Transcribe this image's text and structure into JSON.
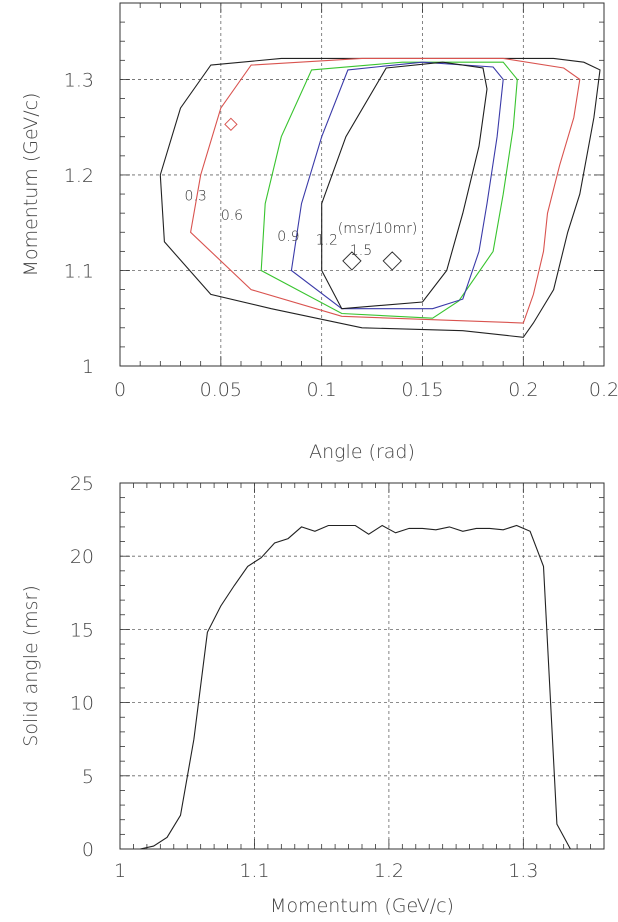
{
  "chart_data": [
    {
      "type": "contour",
      "xlabel": "Angle (rad)",
      "ylabel": "Momentum (GeV/c)",
      "xlim": [
        0,
        0.24
      ],
      "ylim": [
        1.0,
        1.38
      ],
      "xticks": [
        {
          "value": 0,
          "label": "0"
        },
        {
          "value": 0.05,
          "label": "0.05"
        },
        {
          "value": 0.1,
          "label": "0.1"
        },
        {
          "value": 0.15,
          "label": "0.15"
        },
        {
          "value": 0.2,
          "label": "0.2"
        },
        {
          "value": 0.24,
          "label": "0.2"
        }
      ],
      "yticks": [
        {
          "value": 1.0,
          "label": "1"
        },
        {
          "value": 1.1,
          "label": "1.1"
        },
        {
          "value": 1.2,
          "label": "1.2"
        },
        {
          "value": 1.3,
          "label": "1.3"
        }
      ],
      "grid": true,
      "contour_labels": [
        "0.3",
        "0.6",
        "0.9",
        "1.2",
        "1.5"
      ],
      "unit_label": "(msr/10mr)",
      "contours": [
        {
          "level": "0.3",
          "color": "#222222",
          "points": [
            [
              0.045,
              1.315
            ],
            [
              0.08,
              1.322
            ],
            [
              0.16,
              1.322
            ],
            [
              0.215,
              1.322
            ],
            [
              0.23,
              1.318
            ],
            [
              0.238,
              1.31
            ],
            [
              0.235,
              1.26
            ],
            [
              0.228,
              1.18
            ],
            [
              0.222,
              1.14
            ],
            [
              0.215,
              1.08
            ],
            [
              0.205,
              1.045
            ],
            [
              0.2,
              1.03
            ],
            [
              0.17,
              1.037
            ],
            [
              0.12,
              1.04
            ],
            [
              0.075,
              1.06
            ],
            [
              0.045,
              1.075
            ],
            [
              0.022,
              1.13
            ],
            [
              0.02,
              1.2
            ],
            [
              0.03,
              1.27
            ],
            [
              0.045,
              1.315
            ]
          ]
        },
        {
          "level": "0.6",
          "color": "#d9534f",
          "points": [
            [
              0.065,
              1.315
            ],
            [
              0.12,
              1.322
            ],
            [
              0.19,
              1.322
            ],
            [
              0.22,
              1.312
            ],
            [
              0.228,
              1.3
            ],
            [
              0.225,
              1.26
            ],
            [
              0.218,
              1.21
            ],
            [
              0.212,
              1.16
            ],
            [
              0.21,
              1.12
            ],
            [
              0.205,
              1.075
            ],
            [
              0.2,
              1.045
            ],
            [
              0.16,
              1.048
            ],
            [
              0.11,
              1.052
            ],
            [
              0.065,
              1.08
            ],
            [
              0.035,
              1.14
            ],
            [
              0.04,
              1.2
            ],
            [
              0.05,
              1.27
            ],
            [
              0.065,
              1.315
            ]
          ]
        },
        {
          "level": "0.9",
          "color": "#39c42f",
          "points": [
            [
              0.095,
              1.31
            ],
            [
              0.14,
              1.318
            ],
            [
              0.19,
              1.318
            ],
            [
              0.197,
              1.3
            ],
            [
              0.195,
              1.25
            ],
            [
              0.19,
              1.18
            ],
            [
              0.185,
              1.12
            ],
            [
              0.168,
              1.068
            ],
            [
              0.155,
              1.05
            ],
            [
              0.11,
              1.055
            ],
            [
              0.07,
              1.1
            ],
            [
              0.072,
              1.17
            ],
            [
              0.08,
              1.24
            ],
            [
              0.095,
              1.31
            ]
          ]
        },
        {
          "level": "1.2",
          "color": "#3a3aa8",
          "points": [
            [
              0.113,
              1.31
            ],
            [
              0.15,
              1.318
            ],
            [
              0.185,
              1.313
            ],
            [
              0.19,
              1.3
            ],
            [
              0.187,
              1.24
            ],
            [
              0.182,
              1.17
            ],
            [
              0.178,
              1.12
            ],
            [
              0.17,
              1.07
            ],
            [
              0.155,
              1.06
            ],
            [
              0.11,
              1.06
            ],
            [
              0.085,
              1.1
            ],
            [
              0.09,
              1.17
            ],
            [
              0.1,
              1.24
            ],
            [
              0.113,
              1.31
            ]
          ]
        },
        {
          "level": "1.5",
          "color": "#1f1f1f",
          "points": [
            [
              0.132,
              1.312
            ],
            [
              0.16,
              1.318
            ],
            [
              0.18,
              1.312
            ],
            [
              0.182,
              1.29
            ],
            [
              0.178,
              1.23
            ],
            [
              0.17,
              1.16
            ],
            [
              0.162,
              1.1
            ],
            [
              0.15,
              1.067
            ],
            [
              0.11,
              1.06
            ],
            [
              0.1,
              1.1
            ],
            [
              0.1,
              1.17
            ],
            [
              0.112,
              1.24
            ],
            [
              0.132,
              1.312
            ]
          ]
        }
      ],
      "markers": [
        {
          "x": 0.115,
          "y": 1.11,
          "shape": "diamond"
        },
        {
          "x": 0.135,
          "y": 1.11,
          "shape": "diamond"
        }
      ],
      "small_red_marker": {
        "x": 0.055,
        "y": 1.253
      }
    },
    {
      "type": "line",
      "xlabel": "Momentum (GeV/c)",
      "ylabel": "Solid angle (msr)",
      "xlim": [
        1.0,
        1.36
      ],
      "ylim": [
        0,
        25
      ],
      "xticks": [
        {
          "value": 1.0,
          "label": "1"
        },
        {
          "value": 1.1,
          "label": "1.1"
        },
        {
          "value": 1.2,
          "label": "1.2"
        },
        {
          "value": 1.3,
          "label": "1.3"
        }
      ],
      "yticks": [
        {
          "value": 0,
          "label": "0"
        },
        {
          "value": 5,
          "label": "5"
        },
        {
          "value": 10,
          "label": "10"
        },
        {
          "value": 15,
          "label": "15"
        },
        {
          "value": 20,
          "label": "20"
        },
        {
          "value": 25,
          "label": "25"
        }
      ],
      "grid": true,
      "series": [
        {
          "color": "#222222",
          "x": [
            1.015,
            1.025,
            1.035,
            1.045,
            1.055,
            1.065,
            1.075,
            1.085,
            1.095,
            1.105,
            1.115,
            1.125,
            1.135,
            1.145,
            1.155,
            1.165,
            1.175,
            1.185,
            1.195,
            1.205,
            1.215,
            1.225,
            1.235,
            1.245,
            1.255,
            1.265,
            1.275,
            1.285,
            1.295,
            1.305,
            1.315,
            1.325,
            1.335
          ],
          "y": [
            0,
            0.2,
            0.8,
            2.3,
            7.5,
            14.8,
            16.6,
            18.0,
            19.3,
            19.9,
            20.9,
            21.2,
            22.0,
            21.7,
            22.1,
            22.1,
            22.1,
            21.5,
            22.1,
            21.6,
            21.9,
            21.9,
            21.8,
            22.0,
            21.7,
            21.9,
            21.9,
            21.8,
            22.1,
            21.7,
            19.3,
            1.7,
            0
          ]
        }
      ]
    }
  ]
}
